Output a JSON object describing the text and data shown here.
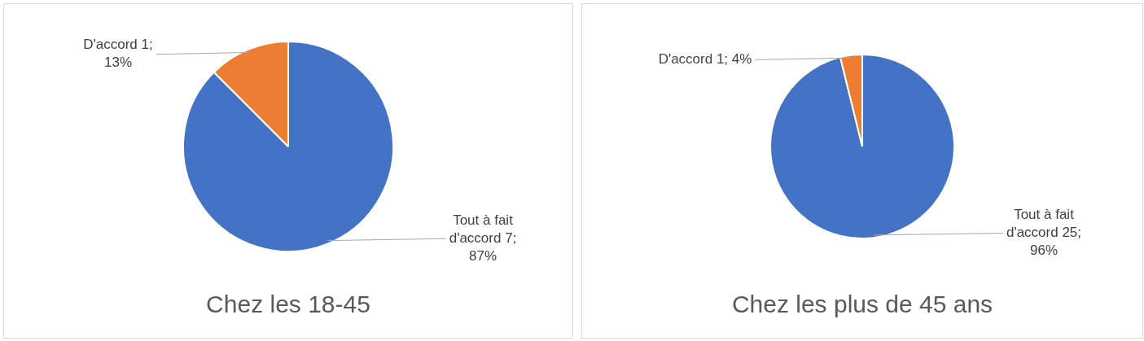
{
  "chart_data": [
    {
      "type": "pie",
      "title": "Chez les 18-45",
      "categories": [
        "Tout à fait d'accord",
        "D'accord"
      ],
      "values": [
        7,
        1
      ],
      "colors": [
        "#4472c4",
        "#ed7d31"
      ],
      "value_labels": [
        "7; 87%",
        "1; 13%"
      ]
    },
    {
      "type": "pie",
      "title": "Chez les plus de 45 ans",
      "categories": [
        "Tout à fait d'accord",
        "D'accord"
      ],
      "values": [
        25,
        1
      ],
      "colors": [
        "#4472c4",
        "#ed7d31"
      ],
      "value_labels": [
        "25; 96%",
        "1; 4%"
      ]
    }
  ]
}
